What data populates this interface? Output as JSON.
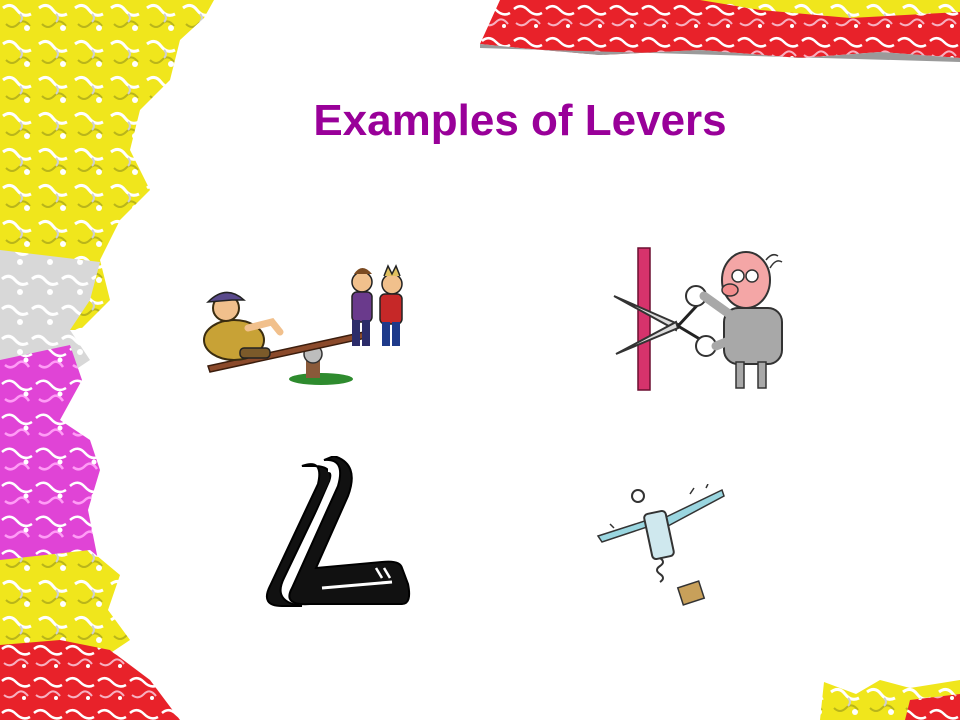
{
  "slide": {
    "title": "Examples of Levers",
    "title_color": "#990099"
  },
  "clipart": [
    {
      "name": "seesaw-illustration-icon"
    },
    {
      "name": "scissors-illustration-icon"
    },
    {
      "name": "stapler-illustration-icon"
    },
    {
      "name": "corkscrew-illustration-icon"
    }
  ],
  "colors": {
    "border_yellow": "#f2ea1a",
    "border_magenta": "#d93fd0",
    "border_red": "#e8242c",
    "background": "#ffffff"
  }
}
